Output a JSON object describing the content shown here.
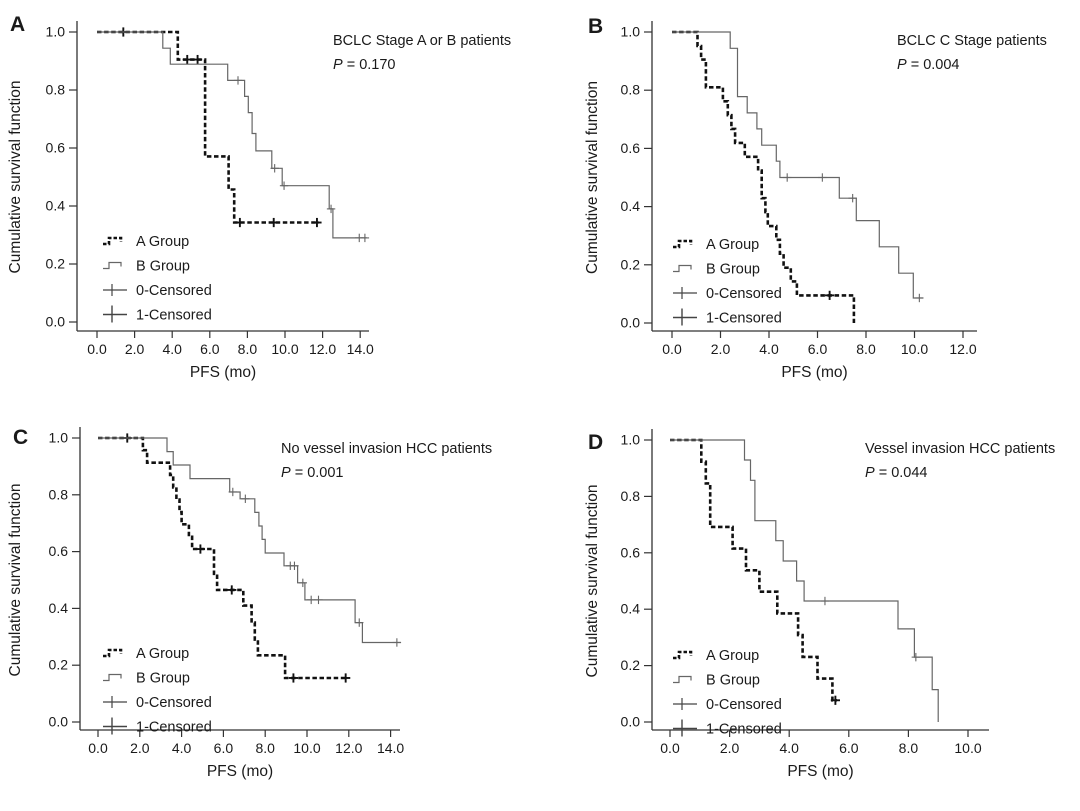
{
  "figure": {
    "background": "#ffffff",
    "colors": {
      "axis": "#333333",
      "text": "#1a1a1a",
      "a_group_line": "#111111",
      "b_group_line": "#666666"
    }
  },
  "chart_data": [
    {
      "panel_label": "A",
      "type": "line",
      "subtype": "kaplan-meier-step",
      "title": "BCLC Stage A or B patients",
      "p_label": "P",
      "p_value": " = 0.170",
      "xlabel": "PFS (mo)",
      "ylabel": "Cumulative survival function",
      "xlim": [
        0,
        14
      ],
      "ylim": [
        0,
        1
      ],
      "grid": false,
      "legend_position": "lower-left",
      "xtick_labels": [
        "0.0",
        "2.0",
        "4.0",
        "6.0",
        "8.0",
        "10.0",
        "12.0",
        "14.0"
      ],
      "ytick_labels": [
        "0.0",
        "0.2",
        "0.4",
        "0.6",
        "0.8",
        "1.0"
      ],
      "legend": [
        {
          "label": "A Group",
          "glyph": "a-step-line"
        },
        {
          "label": "B Group",
          "glyph": "b-step-line"
        },
        {
          "label": "0-Censored",
          "glyph": "censor-plus-0"
        },
        {
          "label": "1-Censored",
          "glyph": "censor-plus-1"
        }
      ],
      "series": [
        {
          "name": "A Group",
          "style": "bold-dashed",
          "steps": [
            [
              0,
              1.0
            ],
            [
              4.3,
              0.905
            ],
            [
              5.75,
              0.571
            ],
            [
              7.0,
              0.457
            ],
            [
              7.3,
              0.343
            ],
            [
              11.8,
              0.343
            ]
          ],
          "censors": [
            [
              1.4,
              1.0
            ],
            [
              4.8,
              0.905
            ],
            [
              5.35,
              0.905
            ],
            [
              7.6,
              0.343
            ],
            [
              9.4,
              0.343
            ],
            [
              11.7,
              0.343
            ]
          ]
        },
        {
          "name": "B Group",
          "style": "thin-solid",
          "steps": [
            [
              0,
              1.0
            ],
            [
              3.5,
              0.944
            ],
            [
              3.9,
              0.889
            ],
            [
              6.95,
              0.833
            ],
            [
              7.85,
              0.778
            ],
            [
              8.05,
              0.722
            ],
            [
              8.25,
              0.65
            ],
            [
              8.45,
              0.59
            ],
            [
              9.3,
              0.53
            ],
            [
              9.85,
              0.47
            ],
            [
              12.35,
              0.39
            ],
            [
              12.55,
              0.29
            ],
            [
              14.35,
              0.29
            ]
          ],
          "censors": [
            [
              7.5,
              0.833
            ],
            [
              9.45,
              0.53
            ],
            [
              9.95,
              0.47
            ],
            [
              12.45,
              0.39
            ],
            [
              13.95,
              0.29
            ],
            [
              14.25,
              0.29
            ]
          ]
        }
      ]
    },
    {
      "panel_label": "B",
      "type": "line",
      "subtype": "kaplan-meier-step",
      "title": "BCLC C Stage patients",
      "p_label": "P",
      "p_value": " = 0.004",
      "xlabel": "PFS (mo)",
      "ylabel": "Cumulative survival function",
      "xlim": [
        0,
        12
      ],
      "ylim": [
        0,
        1
      ],
      "grid": false,
      "legend_position": "lower-left",
      "xtick_labels": [
        "0.0",
        "2.0",
        "4.0",
        "6.0",
        "8.0",
        "10.0",
        "12.0"
      ],
      "ytick_labels": [
        "0.0",
        "0.2",
        "0.4",
        "0.6",
        "0.8",
        "1.0"
      ],
      "legend": [
        {
          "label": "A Group",
          "glyph": "a-step-line"
        },
        {
          "label": "B Group",
          "glyph": "b-step-line"
        },
        {
          "label": "0-Censored",
          "glyph": "censor-plus-0"
        },
        {
          "label": "1-Censored",
          "glyph": "censor-plus-1"
        }
      ],
      "series": [
        {
          "name": "A Group",
          "style": "bold-dashed",
          "steps": [
            [
              0,
              1.0
            ],
            [
              1.05,
              0.952
            ],
            [
              1.2,
              0.905
            ],
            [
              1.4,
              0.81
            ],
            [
              2.1,
              0.762
            ],
            [
              2.3,
              0.714
            ],
            [
              2.45,
              0.667
            ],
            [
              2.6,
              0.619
            ],
            [
              3.0,
              0.571
            ],
            [
              3.55,
              0.524
            ],
            [
              3.7,
              0.429
            ],
            [
              3.85,
              0.381
            ],
            [
              3.95,
              0.333
            ],
            [
              4.3,
              0.286
            ],
            [
              4.45,
              0.238
            ],
            [
              4.6,
              0.19
            ],
            [
              4.9,
              0.143
            ],
            [
              5.15,
              0.095
            ],
            [
              7.5,
              0.0
            ]
          ],
          "censors": [
            [
              6.5,
              0.095
            ]
          ]
        },
        {
          "name": "B Group",
          "style": "thin-solid",
          "steps": [
            [
              0,
              1.0
            ],
            [
              2.4,
              0.944
            ],
            [
              2.7,
              0.778
            ],
            [
              3.1,
              0.722
            ],
            [
              3.5,
              0.667
            ],
            [
              3.7,
              0.611
            ],
            [
              4.3,
              0.556
            ],
            [
              4.45,
              0.5
            ],
            [
              6.9,
              0.429
            ],
            [
              7.6,
              0.352
            ],
            [
              8.55,
              0.262
            ],
            [
              9.35,
              0.171
            ],
            [
              9.95,
              0.086
            ],
            [
              10.35,
              0.086
            ]
          ],
          "censors": [
            [
              4.75,
              0.5
            ],
            [
              6.2,
              0.5
            ],
            [
              7.45,
              0.429
            ],
            [
              10.2,
              0.086
            ]
          ]
        }
      ]
    },
    {
      "panel_label": "C",
      "type": "line",
      "subtype": "kaplan-meier-step",
      "title": "No vessel invasion HCC patients",
      "p_label": "P",
      "p_value": " = 0.001",
      "xlabel": "PFS (mo)",
      "ylabel": "Cumulative survival function",
      "xlim": [
        0,
        14
      ],
      "ylim": [
        0,
        1
      ],
      "grid": false,
      "legend_position": "lower-left",
      "xtick_labels": [
        "0.0",
        "2.0",
        "4.0",
        "6.0",
        "8.0",
        "10.0",
        "12.0",
        "14.0"
      ],
      "ytick_labels": [
        "0.0",
        "0.2",
        "0.4",
        "0.6",
        "0.8",
        "1.0"
      ],
      "legend": [
        {
          "label": "A Group",
          "glyph": "a-step-line"
        },
        {
          "label": "B Group",
          "glyph": "b-step-line"
        },
        {
          "label": "0-Censored",
          "glyph": "censor-plus-0"
        },
        {
          "label": "1-Censored",
          "glyph": "censor-plus-1"
        }
      ],
      "series": [
        {
          "name": "A Group",
          "style": "bold-dashed",
          "steps": [
            [
              0,
              1.0
            ],
            [
              2.15,
              0.957
            ],
            [
              2.35,
              0.913
            ],
            [
              3.45,
              0.87
            ],
            [
              3.6,
              0.826
            ],
            [
              3.75,
              0.783
            ],
            [
              3.9,
              0.739
            ],
            [
              4.0,
              0.696
            ],
            [
              4.35,
              0.652
            ],
            [
              4.5,
              0.609
            ],
            [
              5.55,
              0.522
            ],
            [
              5.7,
              0.465
            ],
            [
              6.95,
              0.41
            ],
            [
              7.35,
              0.35
            ],
            [
              7.5,
              0.29
            ],
            [
              7.65,
              0.235
            ],
            [
              8.95,
              0.155
            ],
            [
              11.9,
              0.155
            ]
          ],
          "censors": [
            [
              1.4,
              1.0
            ],
            [
              4.9,
              0.609
            ],
            [
              6.4,
              0.465
            ],
            [
              9.35,
              0.155
            ],
            [
              11.85,
              0.155
            ]
          ]
        },
        {
          "name": "B Group",
          "style": "thin-solid",
          "steps": [
            [
              0,
              1.0
            ],
            [
              3.3,
              0.952
            ],
            [
              3.6,
              0.905
            ],
            [
              4.4,
              0.857
            ],
            [
              6.3,
              0.81
            ],
            [
              6.8,
              0.786
            ],
            [
              7.5,
              0.738
            ],
            [
              7.7,
              0.69
            ],
            [
              7.85,
              0.643
            ],
            [
              8.0,
              0.595
            ],
            [
              8.9,
              0.55
            ],
            [
              9.55,
              0.49
            ],
            [
              9.9,
              0.43
            ],
            [
              12.3,
              0.35
            ],
            [
              12.65,
              0.28
            ],
            [
              14.5,
              0.28
            ]
          ],
          "censors": [
            [
              6.45,
              0.81
            ],
            [
              7.05,
              0.786
            ],
            [
              9.2,
              0.55
            ],
            [
              9.4,
              0.55
            ],
            [
              9.8,
              0.49
            ],
            [
              10.2,
              0.43
            ],
            [
              10.55,
              0.43
            ],
            [
              12.5,
              0.35
            ],
            [
              14.3,
              0.28
            ]
          ]
        }
      ]
    },
    {
      "panel_label": "D",
      "type": "line",
      "subtype": "kaplan-meier-step",
      "title": "Vessel invasion HCC patients",
      "p_label": "P",
      "p_value": " = 0.044",
      "xlabel": "PFS (mo)",
      "ylabel": "Cumulative survival function",
      "xlim": [
        0,
        10
      ],
      "ylim": [
        0,
        1
      ],
      "grid": false,
      "legend_position": "lower-left",
      "xtick_labels": [
        "0.0",
        "2.0",
        "4.0",
        "6.0",
        "8.0",
        "10.0"
      ],
      "ytick_labels": [
        "0.0",
        "0.2",
        "0.4",
        "0.6",
        "0.8",
        "1.0"
      ],
      "legend": [
        {
          "label": "A Group",
          "glyph": "a-step-line"
        },
        {
          "label": "B Group",
          "glyph": "b-step-line"
        },
        {
          "label": "0-Censored",
          "glyph": "censor-plus-0"
        },
        {
          "label": "1-Censored",
          "glyph": "censor-plus-1"
        }
      ],
      "series": [
        {
          "name": "A Group",
          "style": "bold-dashed",
          "steps": [
            [
              0,
              1.0
            ],
            [
              1.05,
              0.923
            ],
            [
              1.2,
              0.846
            ],
            [
              1.35,
              0.692
            ],
            [
              2.1,
              0.615
            ],
            [
              2.55,
              0.538
            ],
            [
              3.0,
              0.462
            ],
            [
              3.6,
              0.385
            ],
            [
              4.3,
              0.308
            ],
            [
              4.45,
              0.231
            ],
            [
              4.95,
              0.154
            ],
            [
              5.45,
              0.077
            ],
            [
              5.6,
              0.077
            ]
          ],
          "censors": [
            [
              5.55,
              0.077
            ]
          ]
        },
        {
          "name": "B Group",
          "style": "thin-solid",
          "steps": [
            [
              0,
              1.0
            ],
            [
              2.5,
              0.929
            ],
            [
              2.7,
              0.857
            ],
            [
              2.85,
              0.714
            ],
            [
              3.55,
              0.643
            ],
            [
              3.8,
              0.571
            ],
            [
              4.25,
              0.5
            ],
            [
              4.5,
              0.429
            ],
            [
              7.65,
              0.33
            ],
            [
              8.2,
              0.23
            ],
            [
              8.8,
              0.115
            ],
            [
              9.0,
              0.0
            ]
          ],
          "censors": [
            [
              5.2,
              0.429
            ],
            [
              8.25,
              0.23
            ]
          ]
        }
      ]
    }
  ]
}
